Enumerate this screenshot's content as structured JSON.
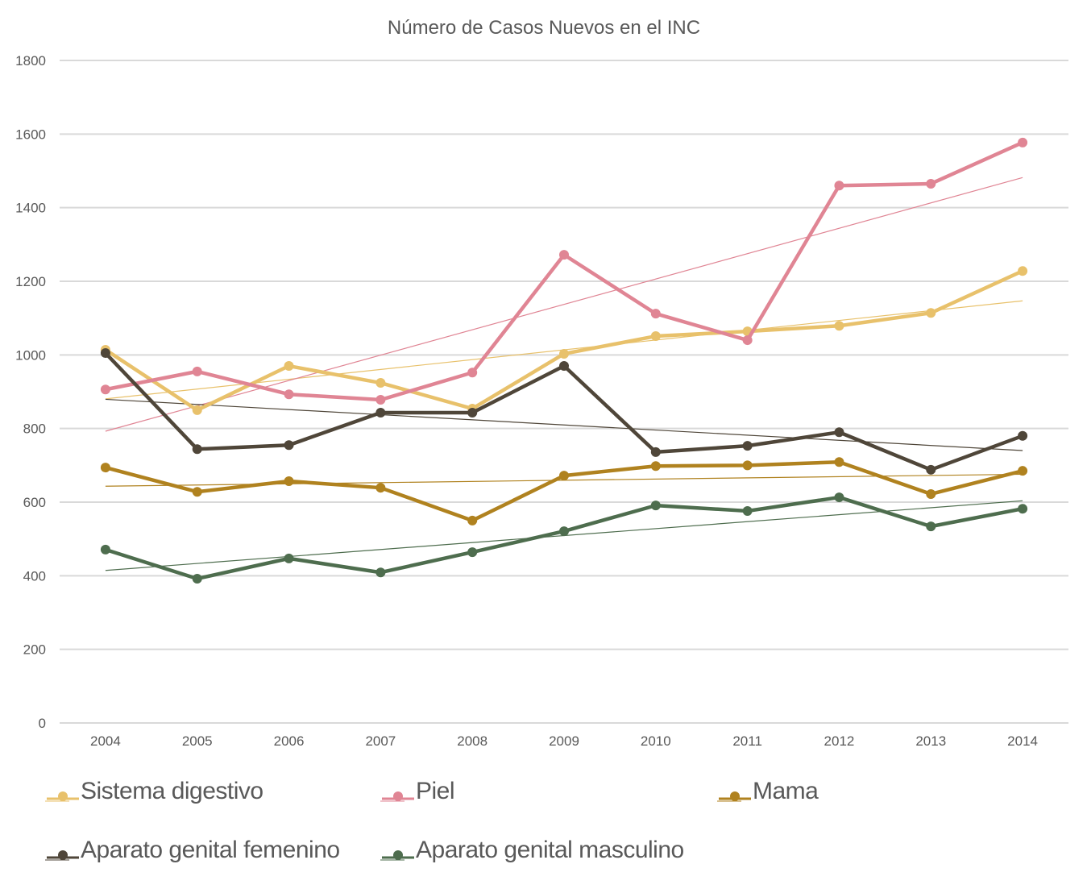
{
  "chart_data": {
    "type": "line",
    "title": "Número de Casos Nuevos en el INC",
    "xlabel": "",
    "ylabel": "",
    "x": [
      "2004",
      "2005",
      "2006",
      "2007",
      "2008",
      "2009",
      "2010",
      "2011",
      "2012",
      "2013",
      "2014"
    ],
    "ylim": [
      0,
      1800
    ],
    "yticks": [
      "0",
      "200",
      "400",
      "600",
      "800",
      "1000",
      "1200",
      "1400",
      "1600",
      "1800"
    ],
    "grid": true,
    "legend_position": "bottom",
    "trendlines": "linear",
    "series": [
      {
        "name": "Sistema digestivo",
        "color": "#E8C16B",
        "values": [
          1014,
          850,
          970,
          924,
          854,
          1003,
          1051,
          1064,
          1079,
          1114,
          1228
        ]
      },
      {
        "name": "Piel",
        "color": "#E08594",
        "values": [
          906,
          955,
          893,
          878,
          952,
          1272,
          1112,
          1040,
          1460,
          1465,
          1577
        ]
      },
      {
        "name": "Mama",
        "color": "#B0821F",
        "values": [
          694,
          628,
          657,
          639,
          550,
          672,
          698,
          700,
          709,
          622,
          685
        ]
      },
      {
        "name": "Aparato genital femenino",
        "color": "#4F4639",
        "values": [
          1005,
          744,
          755,
          843,
          843,
          970,
          736,
          753,
          790,
          688,
          780
        ]
      },
      {
        "name": "Aparato genital masculino",
        "color": "#4E6D4E",
        "values": [
          471,
          392,
          447,
          409,
          464,
          521,
          591,
          576,
          613,
          534,
          582
        ]
      }
    ]
  }
}
